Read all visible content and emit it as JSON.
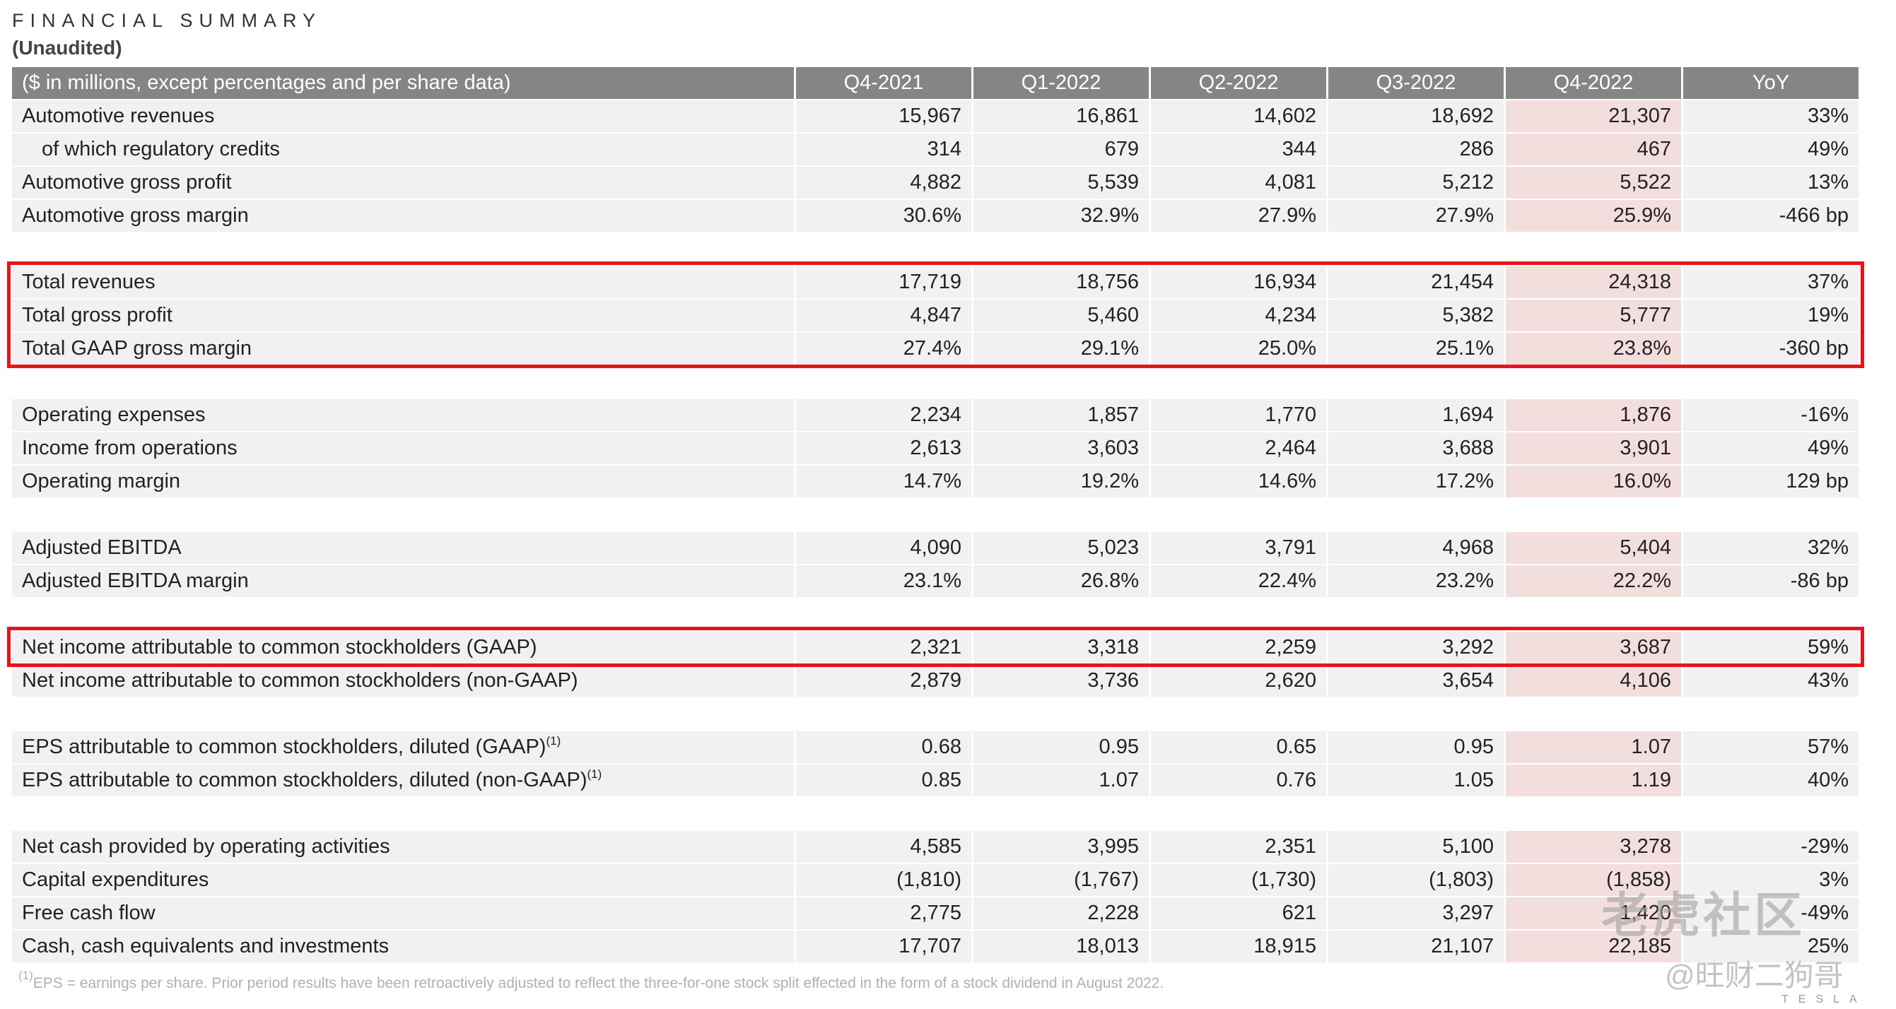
{
  "header": {
    "title": "FINANCIAL SUMMARY",
    "subtitle": "(Unaudited)"
  },
  "table": {
    "columns": [
      "($ in millions, except percentages and per share data)",
      "Q4-2021",
      "Q1-2022",
      "Q2-2022",
      "Q3-2022",
      "Q4-2022",
      "YoY"
    ],
    "highlight_column": 4,
    "groups": [
      {
        "rows": [
          {
            "label": "Automotive revenues",
            "values": [
              "15,967",
              "16,861",
              "14,602",
              "18,692",
              "21,307",
              "33%"
            ]
          },
          {
            "label": "of which regulatory credits",
            "indent": true,
            "values": [
              "314",
              "679",
              "344",
              "286",
              "467",
              "49%"
            ]
          },
          {
            "label": "Automotive gross profit",
            "values": [
              "4,882",
              "5,539",
              "4,081",
              "5,212",
              "5,522",
              "13%"
            ]
          },
          {
            "label": "Automotive gross margin",
            "values": [
              "30.6%",
              "32.9%",
              "27.9%",
              "27.9%",
              "25.9%",
              "-466 bp"
            ]
          }
        ]
      },
      {
        "rows": [
          {
            "label": "Total revenues",
            "boxed": true,
            "values": [
              "17,719",
              "18,756",
              "16,934",
              "21,454",
              "24,318",
              "37%"
            ]
          },
          {
            "label": "Total gross profit",
            "boxed": true,
            "values": [
              "4,847",
              "5,460",
              "4,234",
              "5,382",
              "5,777",
              "19%"
            ]
          },
          {
            "label": "Total GAAP gross margin",
            "boxed": true,
            "values": [
              "27.4%",
              "29.1%",
              "25.0%",
              "25.1%",
              "23.8%",
              "-360 bp"
            ]
          }
        ]
      },
      {
        "rows": [
          {
            "label": "Operating expenses",
            "values": [
              "2,234",
              "1,857",
              "1,770",
              "1,694",
              "1,876",
              "-16%"
            ]
          },
          {
            "label": "Income from operations",
            "values": [
              "2,613",
              "3,603",
              "2,464",
              "3,688",
              "3,901",
              "49%"
            ]
          },
          {
            "label": "Operating margin",
            "values": [
              "14.7%",
              "19.2%",
              "14.6%",
              "17.2%",
              "16.0%",
              "129 bp"
            ]
          }
        ]
      },
      {
        "rows": [
          {
            "label": "Adjusted EBITDA",
            "values": [
              "4,090",
              "5,023",
              "3,791",
              "4,968",
              "5,404",
              "32%"
            ]
          },
          {
            "label": "Adjusted EBITDA margin",
            "values": [
              "23.1%",
              "26.8%",
              "22.4%",
              "23.2%",
              "22.2%",
              "-86 bp"
            ]
          }
        ]
      },
      {
        "rows": [
          {
            "label": "Net income attributable to common stockholders (GAAP)",
            "boxed": true,
            "values": [
              "2,321",
              "3,318",
              "2,259",
              "3,292",
              "3,687",
              "59%"
            ]
          },
          {
            "label": "Net income attributable to common stockholders (non-GAAP)",
            "values": [
              "2,879",
              "3,736",
              "2,620",
              "3,654",
              "4,106",
              "43%"
            ]
          }
        ]
      },
      {
        "rows": [
          {
            "label": "EPS attributable to common stockholders, diluted (GAAP)",
            "note": "(1)",
            "values": [
              "0.68",
              "0.95",
              "0.65",
              "0.95",
              "1.07",
              "57%"
            ]
          },
          {
            "label": "EPS attributable to common stockholders, diluted (non-GAAP)",
            "note": "(1)",
            "values": [
              "0.85",
              "1.07",
              "0.76",
              "1.05",
              "1.19",
              "40%"
            ]
          }
        ]
      },
      {
        "rows": [
          {
            "label": "Net cash provided by operating activities",
            "values": [
              "4,585",
              "3,995",
              "2,351",
              "5,100",
              "3,278",
              "-29%"
            ]
          },
          {
            "label": "Capital expenditures",
            "values": [
              "(1,810)",
              "(1,767)",
              "(1,730)",
              "(1,803)",
              "(1,858)",
              "3%"
            ]
          },
          {
            "label": "Free cash flow",
            "values": [
              "2,775",
              "2,228",
              "621",
              "3,297",
              "1,420",
              "-49%"
            ]
          },
          {
            "label": "Cash, cash equivalents and investments",
            "values": [
              "17,707",
              "18,013",
              "18,915",
              "21,107",
              "22,185",
              "25%"
            ]
          }
        ]
      }
    ]
  },
  "footnote": {
    "marker": "(1)",
    "text": "EPS = earnings per share. Prior period results have been retroactively adjusted to reflect the three-for-one stock split effected in the form of a stock dividend in August 2022."
  },
  "watermark": {
    "logo": "老虎社区",
    "author": "@旺财二狗哥"
  },
  "brand": "TESLA"
}
